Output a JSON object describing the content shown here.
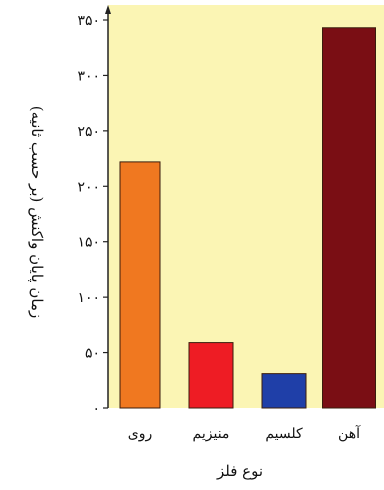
{
  "chart_data": {
    "type": "bar",
    "categories": [
      "روی",
      "منیزیم",
      "کلسیم",
      "آهن"
    ],
    "values": [
      222,
      59,
      31,
      343
    ],
    "colors": [
      "#f07820",
      "#ee1c24",
      "#1f3fa8",
      "#7a0e14"
    ],
    "xlabel": "نوع فلز",
    "ylabel": "زمان پایان واکنش (بر حسب ثانیه)",
    "ylim": [
      0,
      350
    ],
    "yticks": [
      0,
      50,
      100,
      150,
      200,
      250,
      300,
      350
    ],
    "ytick_labels": [
      "۰",
      "۵۰",
      "۱۰۰",
      "۱۵۰",
      "۲۰۰",
      "۲۵۰",
      "۳۰۰",
      "۳۵۰"
    ],
    "plot_background": "#fbf5b4",
    "grid": false,
    "legend": "none"
  }
}
